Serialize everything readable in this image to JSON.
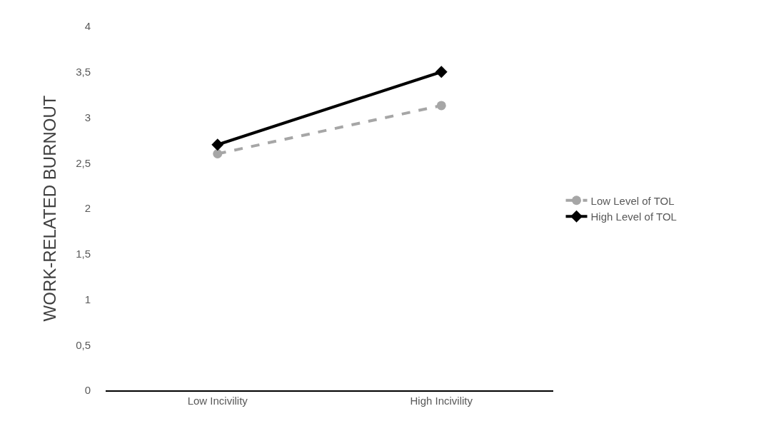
{
  "chart_data": {
    "type": "line",
    "ylabel": "WORK-RELATED BURNOUT",
    "categories": [
      "Low Incivility",
      "High Incivility"
    ],
    "series": [
      {
        "name": "Low Level of TOL",
        "color": "#a6a6a6",
        "values": [
          2.6,
          3.13
        ],
        "marker": "circle",
        "line_style": "dashed"
      },
      {
        "name": "High Level of TOL",
        "color": "#000000",
        "values": [
          2.7,
          3.5
        ],
        "marker": "diamond",
        "line_style": "solid"
      }
    ],
    "ylim": [
      0,
      4
    ],
    "yticks": [
      0,
      {
        "value": 0.5,
        "label": "0,5"
      },
      1,
      {
        "value": 1.5,
        "label": "1,5"
      },
      2,
      {
        "value": 2.5,
        "label": "2,5"
      },
      3,
      {
        "value": 3.5,
        "label": "3,5"
      },
      4
    ],
    "grid": false,
    "legend": "right"
  }
}
